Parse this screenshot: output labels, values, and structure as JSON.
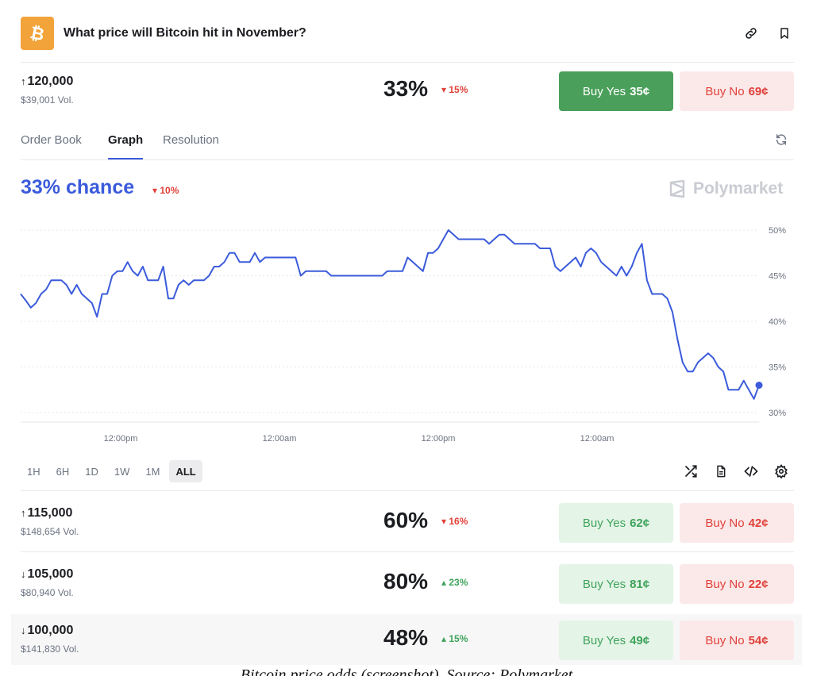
{
  "header": {
    "title": "What price will Bitcoin hit in November?",
    "icons": [
      "bitcoin-logo",
      "link-icon",
      "bookmark-icon"
    ]
  },
  "main_market": {
    "arrow": "↑",
    "threshold": "120,000",
    "volume": "$39,001 Vol.",
    "percent": "33%",
    "change": "15%",
    "change_dir": "down",
    "yes_label": "Buy Yes",
    "yes_price": "35¢",
    "no_label": "Buy No",
    "no_price": "69¢"
  },
  "tabs": [
    "Order Book",
    "Graph",
    "Resolution"
  ],
  "active_tab": "Graph",
  "chance": {
    "label": "33% chance",
    "change": "10%",
    "change_dir": "down"
  },
  "brand": "Polymarket",
  "chart_data": {
    "type": "line",
    "x_ticks": [
      "12:00pm",
      "12:00am",
      "12:00pm",
      "12:00am"
    ],
    "y_ticks": [
      "30%",
      "35%",
      "40%",
      "45%",
      "50%"
    ],
    "ylim": [
      30,
      50
    ],
    "grid": true,
    "series": [
      {
        "color": "#3b5bdb",
        "values": [
          43,
          42.3,
          41.5,
          42,
          43,
          43.5,
          44.5,
          44.5,
          44.5,
          44,
          43,
          44,
          43,
          42.5,
          42,
          40.5,
          43,
          43,
          45,
          45.5,
          45.5,
          46.5,
          45.5,
          45,
          46,
          44.5,
          44.5,
          44.5,
          46,
          42.5,
          42.5,
          44,
          44.5,
          44,
          44.5,
          44.5,
          44.5,
          45,
          46,
          46,
          46.5,
          47.5,
          47.5,
          46.5,
          46.5,
          46.5,
          47.5,
          46.5,
          47,
          47,
          47,
          47,
          47,
          47,
          47,
          45,
          45.5,
          45.5,
          45.5,
          45.5,
          45.5,
          45,
          45,
          45,
          45,
          45,
          45,
          45,
          45,
          45,
          45,
          45,
          45.5,
          45.5,
          45.5,
          45.5,
          47,
          46.5,
          46,
          45.5,
          47.5,
          47.5,
          48,
          49,
          50,
          49.5,
          49,
          49,
          49,
          49,
          49,
          49,
          48.5,
          49,
          49.5,
          49.5,
          49,
          48.5,
          48.5,
          48.5,
          48.5,
          48.5,
          48,
          48,
          48,
          46,
          45.5,
          46,
          46.5,
          47,
          46,
          47.5,
          48,
          47.5,
          46.5,
          46,
          45.5,
          45,
          46,
          45,
          46,
          47.5,
          48.5,
          44.5,
          43,
          43,
          43,
          42.5,
          41,
          38,
          35.5,
          34.5,
          34.5,
          35.5,
          36,
          36.5,
          36,
          35,
          34.5,
          32.5,
          32.5,
          32.5,
          33.5,
          32.5,
          31.5,
          33
        ]
      }
    ]
  },
  "ranges": [
    "1H",
    "6H",
    "1D",
    "1W",
    "1M",
    "ALL"
  ],
  "active_range": "ALL",
  "tool_icons": [
    "shuffle-icon",
    "document-icon",
    "code-icon",
    "settings-icon"
  ],
  "markets": [
    {
      "arrow": "↑",
      "threshold": "115,000",
      "volume": "$148,654 Vol.",
      "percent": "60%",
      "change": "16%",
      "change_dir": "down",
      "yes_label": "Buy Yes",
      "yes_price": "62¢",
      "no_label": "Buy No",
      "no_price": "42¢"
    },
    {
      "arrow": "↓",
      "threshold": "105,000",
      "volume": "$80,940 Vol.",
      "percent": "80%",
      "change": "23%",
      "change_dir": "up",
      "yes_label": "Buy Yes",
      "yes_price": "81¢",
      "no_label": "Buy No",
      "no_price": "22¢"
    },
    {
      "arrow": "↓",
      "threshold": "100,000",
      "volume": "$141,830 Vol.",
      "percent": "48%",
      "change": "15%",
      "change_dir": "up",
      "yes_label": "Buy Yes",
      "yes_price": "49¢",
      "no_label": "Buy No",
      "no_price": "54¢"
    }
  ],
  "caption": "Bitcoin price odds (screenshot). Source: Polymarket"
}
